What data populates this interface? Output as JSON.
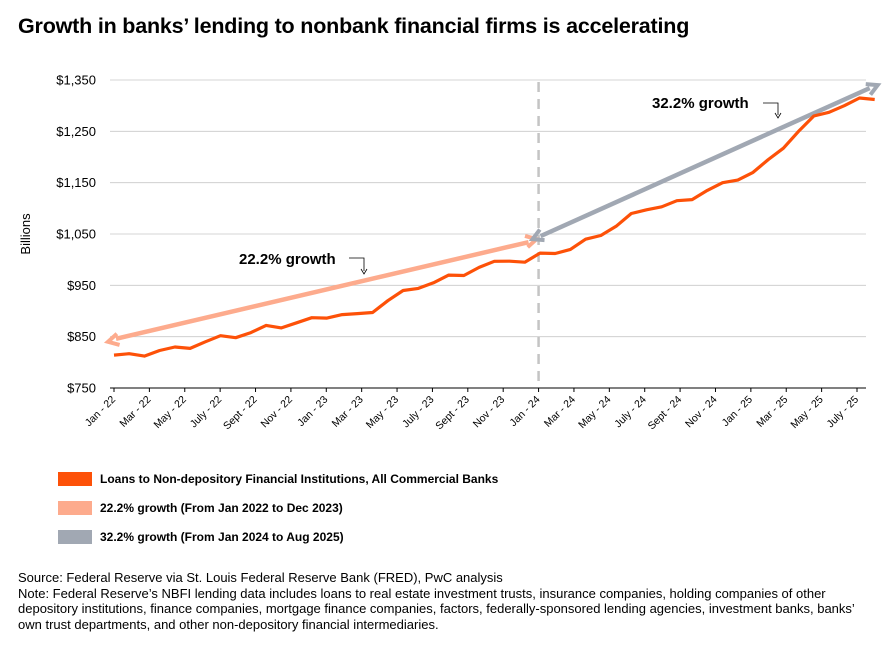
{
  "title": "Growth in banks’ lending to nonbank financial firms is accelerating",
  "chart_data": {
    "type": "line",
    "ylabel": "Billions",
    "xlabel": "",
    "ylim": [
      750,
      1350
    ],
    "yticks": [
      "$1,350",
      "$1,250",
      "$1,150",
      "$1,050",
      "$950",
      "$850",
      "$750"
    ],
    "ytick_values": [
      1350,
      1250,
      1150,
      1050,
      950,
      850,
      750
    ],
    "xticks": [
      "Jan - 22",
      "Mar - 22",
      "May - 22",
      "July - 22",
      "Sept - 22",
      "Nov - 22",
      "Jan - 23",
      "Mar - 23",
      "May - 23",
      "July - 23",
      "Sept - 23",
      "Nov - 23",
      "Jan - 24",
      "Mar - 24",
      "May - 24",
      "July - 24",
      "Sept - 24",
      "Nov - 24",
      "Jan - 25",
      "Mar - 25",
      "May - 25",
      "July - 25"
    ],
    "grid": "horizontal",
    "legend_position": "bottom-left",
    "series": [
      {
        "name": "Loans to Non-depository Financial Institutions, All Commercial Banks",
        "color": "#fd5108",
        "values": [
          814,
          812,
          815,
          823,
          825,
          830,
          840,
          847,
          851,
          858,
          867,
          870,
          877,
          882,
          889,
          893,
          890,
          900,
          920,
          935,
          947,
          955,
          965,
          972,
          985,
          992,
          1000,
          995,
          1008,
          1015,
          1020,
          1035,
          1050,
          1065,
          1085,
          1100,
          1103,
          1110,
          1120,
          1135,
          1145,
          1158,
          1170,
          1190,
          1220,
          1250,
          1275,
          1290,
          1300,
          1310,
          1315
        ]
      }
    ],
    "annotations": [
      {
        "label": "22.2% growth",
        "detail": "From Jan 2022 to Dec 2023",
        "color": "#fdab8d",
        "from": {
          "x": "Jan - 22",
          "y": 840
        },
        "to": {
          "x": "Jan - 24",
          "y": 1040
        }
      },
      {
        "label": "32.2% growth",
        "detail": "From Jan 2024 to Aug 2025",
        "color": "#a1a8b3",
        "from": {
          "x": "Jan - 24",
          "y": 1040
        },
        "to": {
          "x": "Aug - 25",
          "y": 1340
        }
      }
    ],
    "divider": {
      "x": "Jan - 24"
    }
  },
  "legend": [
    {
      "label": "Loans to Non-depository Financial Institutions, All Commercial Banks",
      "color": "#fd5108"
    },
    {
      "label": "22.2% growth (From Jan 2022 to Dec 2023)",
      "color": "#fdab8d"
    },
    {
      "label": "32.2% growth (From Jan 2024 to Aug 2025)",
      "color": "#a1a8b3"
    }
  ],
  "source": "Source: Federal Reserve via St. Louis Federal Reserve Bank (FRED), PwC analysis",
  "note": "Note: Federal Reserve’s NBFI lending data includes loans to real estate investment trusts, insurance companies, holding companies of other depository institutions, finance companies, mortgage finance companies, factors, federally-sponsored lending agencies, investment banks, banks’ own trust departments, and other non-depository financial intermediaries."
}
